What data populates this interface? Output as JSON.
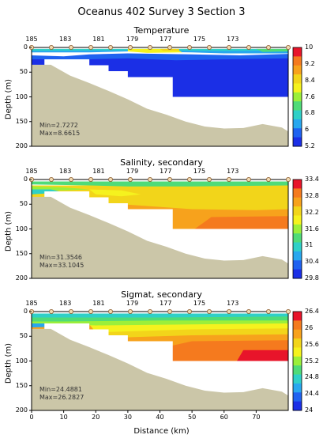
{
  "title": "Oceanus 402 Survey 3 Section 3",
  "station_labels": [
    "185",
    "183",
    "181",
    "179",
    "177",
    "175",
    "173"
  ],
  "station_label_km": [
    0,
    10.5,
    20.9,
    31.4,
    41.8,
    52.3,
    62.7
  ],
  "xlabel": "Distance (km)",
  "x_ticks": [
    "0",
    "10",
    "20",
    "30",
    "40",
    "50",
    "60",
    "70"
  ],
  "ylabel": "Depth (m)",
  "y_ticks": [
    "0",
    "50",
    "100",
    "150",
    "200"
  ],
  "bottom_profile_km_m": [
    [
      0,
      35
    ],
    [
      6,
      35
    ],
    [
      12,
      57
    ],
    [
      18,
      72
    ],
    [
      24,
      88
    ],
    [
      30,
      105
    ],
    [
      36,
      124
    ],
    [
      42,
      136
    ],
    [
      48,
      150
    ],
    [
      54,
      160
    ],
    [
      60,
      164
    ],
    [
      66,
      163
    ],
    [
      72,
      155
    ],
    [
      78,
      162
    ],
    [
      80,
      170
    ]
  ],
  "colors": {
    "sea_floor": "#cbc6a8",
    "white": "#ffffff"
  },
  "chart_data": [
    {
      "type": "heatmap",
      "title": "Temperature",
      "stats": {
        "min": "Min=2.7272",
        "max": "Max=8.6615"
      },
      "colorbar_ticks": [
        "10",
        "9.2",
        "8.4",
        "7.6",
        "6.8",
        "6",
        "5.2"
      ],
      "colorbar_range": [
        5.2,
        10
      ],
      "xlim": [
        0,
        80
      ],
      "ylim": [
        200,
        0
      ]
    },
    {
      "type": "heatmap",
      "title": "Salinity, secondary",
      "stats": {
        "min": "Min=31.3546",
        "max": "Max=33.1045"
      },
      "colorbar_ticks": [
        "33.4",
        "32.8",
        "32.2",
        "31.6",
        "31",
        "30.4",
        "29.8"
      ],
      "colorbar_range": [
        29.8,
        33.4
      ],
      "xlim": [
        0,
        80
      ],
      "ylim": [
        200,
        0
      ]
    },
    {
      "type": "heatmap",
      "title": "Sigmat, secondary",
      "stats": {
        "min": "Min=24.4881",
        "max": "Max=26.2827"
      },
      "colorbar_ticks": [
        "26.4",
        "26",
        "25.6",
        "25.2",
        "24.8",
        "24.4",
        "24"
      ],
      "colorbar_range": [
        24,
        26.4
      ],
      "xlim": [
        0,
        80
      ],
      "ylim": [
        200,
        0
      ]
    }
  ]
}
